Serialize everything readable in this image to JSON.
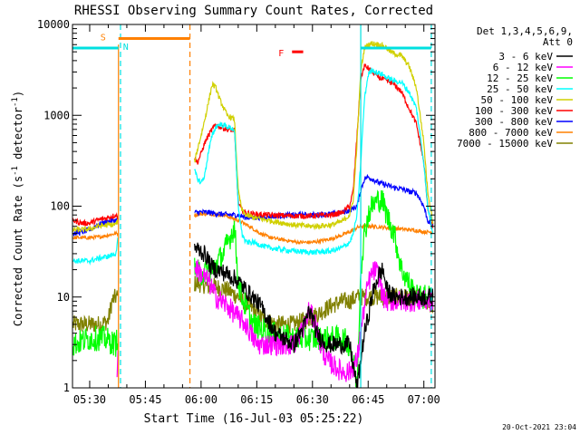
{
  "chart_data": {
    "type": "line",
    "title": "RHESSI Observing Summary Count Rates, Corrected",
    "xlabel": "Start Time (16-Jul-03 05:25:22)",
    "ylabel": "Corrected Count Rate (s⁻¹ detector⁻¹)",
    "ylabel_main": "Corrected Count Rate (s",
    "ylabel_exp1": "-1",
    "ylabel_mid": " detector",
    "ylabel_exp2": "-1",
    "ylabel_end": ")",
    "yscale": "log",
    "xlim": [
      "05:25:22",
      "07:03:00"
    ],
    "ylim": [
      1,
      10000
    ],
    "x_unit": "minutes of day",
    "x_range_minutes": [
      325.37,
      423.0
    ],
    "x_ticks": [
      {
        "label": "05:30",
        "minutes": 330
      },
      {
        "label": "05:45",
        "minutes": 345
      },
      {
        "label": "06:00",
        "minutes": 360
      },
      {
        "label": "06:15",
        "minutes": 375
      },
      {
        "label": "06:30",
        "minutes": 390
      },
      {
        "label": "06:45",
        "minutes": 405
      },
      {
        "label": "07:00",
        "minutes": 420
      }
    ],
    "y_ticks": [
      {
        "label": "1",
        "value": 1
      },
      {
        "label": "10",
        "value": 10
      },
      {
        "label": "100",
        "value": 100
      },
      {
        "label": "1000",
        "value": 1000
      },
      {
        "label": "10000",
        "value": 10000
      }
    ],
    "legend_header": [
      "Det 1,3,4,5,6,9,",
      "Att 0"
    ],
    "legend_position": "top-right, outside plot",
    "timestamp": "20-Oct-2021 23:04",
    "annotations": [
      {
        "text": "S",
        "color": "#ff8000"
      },
      {
        "text": "N",
        "color": "#00e0e0"
      },
      {
        "text": "F",
        "color": "#ff0000"
      }
    ],
    "series": [
      {
        "name": "3 - 6 keV",
        "color": "#000000",
        "width": 1.2,
        "noise": 0.1,
        "x": [
          325.4,
          337.8,
          338.2,
          340,
          357.8,
          358.2,
          360,
          361.5,
          362.5,
          364,
          367,
          370,
          372,
          376,
          380,
          385,
          388,
          389,
          390,
          391,
          394,
          400,
          402,
          403,
          404,
          405,
          406,
          407,
          408,
          409,
          410,
          412,
          414,
          418,
          420,
          422.5
        ],
        "y": [
          null,
          null,
          null,
          null,
          null,
          35,
          32,
          28,
          22,
          20,
          18,
          15,
          12,
          8,
          4,
          3,
          5,
          7,
          6,
          4,
          3,
          3,
          1,
          2,
          4,
          6,
          10,
          14,
          18,
          20,
          12,
          10,
          10,
          10,
          10,
          10
        ]
      },
      {
        "name": "6 - 12 keV",
        "color": "#ff00ff",
        "width": 1.2,
        "noise": 0.12,
        "x": [
          325.4,
          335,
          337.3,
          337.7,
          338.2,
          340,
          357.8,
          358.2,
          360,
          362,
          364,
          367,
          370,
          372,
          375,
          380,
          385,
          388,
          389,
          390,
          391,
          392,
          394,
          398,
          400,
          402,
          403,
          404,
          405,
          406,
          407,
          408,
          409,
          410,
          412,
          414,
          418,
          420,
          422.5
        ],
        "y": [
          null,
          null,
          1.5,
          2.5,
          null,
          null,
          null,
          22,
          18,
          15,
          10,
          8,
          6,
          5,
          3,
          3,
          3,
          5,
          7,
          6,
          5,
          3,
          2,
          1.5,
          1.5,
          2,
          4,
          8,
          14,
          18,
          20,
          16,
          10,
          9,
          9,
          9,
          9,
          9,
          9
        ]
      },
      {
        "name": "12 - 25 keV",
        "color": "#00ff00",
        "width": 1.2,
        "noise": 0.14,
        "x": [
          325.4,
          330,
          334,
          337,
          337.7,
          338.2,
          340,
          357.8,
          358.2,
          360,
          363,
          366,
          369,
          370,
          371,
          374,
          378,
          385,
          392,
          398,
          400,
          401,
          402,
          403,
          404,
          405,
          406,
          407,
          408,
          409,
          410,
          412,
          414,
          418,
          420,
          422.5
        ],
        "y": [
          3,
          3.5,
          3.5,
          3,
          4,
          null,
          null,
          null,
          20,
          18,
          20,
          30,
          60,
          15,
          10,
          5,
          4,
          3.5,
          3.5,
          3.5,
          3,
          2,
          1,
          20,
          50,
          80,
          100,
          110,
          120,
          110,
          80,
          50,
          20,
          10,
          10,
          10
        ]
      },
      {
        "name": "25 - 50 keV",
        "color": "#00ffff",
        "width": 1.2,
        "noise": 0.03,
        "x": [
          325.4,
          330,
          333,
          335,
          337,
          337.7,
          338.2,
          340,
          357.8,
          358.2,
          359,
          360,
          361,
          362,
          363,
          364,
          365,
          367,
          369,
          370,
          371,
          372,
          374,
          378,
          385,
          390,
          395,
          398,
          400,
          401,
          402,
          403,
          404,
          405,
          406,
          407,
          408,
          409,
          410,
          411,
          412,
          414,
          416,
          418,
          420,
          421,
          422.5
        ],
        "y": [
          25,
          25,
          27,
          28,
          30,
          45,
          null,
          null,
          null,
          250,
          200,
          180,
          220,
          400,
          600,
          750,
          800,
          750,
          700,
          100,
          50,
          40,
          40,
          35,
          32,
          31,
          32,
          35,
          40,
          50,
          80,
          300,
          1500,
          2800,
          3200,
          3000,
          2900,
          2800,
          2600,
          2500,
          2400,
          2300,
          1800,
          1200,
          300,
          100,
          50
        ]
      },
      {
        "name": "50 - 100 keV",
        "color": "#d0d000",
        "width": 1.2,
        "noise": 0.03,
        "x": [
          325.4,
          328,
          330,
          332,
          335,
          337,
          337.7,
          338.2,
          340,
          357.8,
          358.2,
          359,
          360,
          361,
          362,
          363,
          364,
          365,
          367,
          369,
          370,
          371,
          372,
          374,
          378,
          385,
          390,
          395,
          398,
          400,
          401,
          402,
          403,
          404,
          405,
          406,
          407,
          408,
          409,
          410,
          411,
          412,
          414,
          416,
          418,
          420,
          421,
          422.5
        ],
        "y": [
          55,
          55,
          56,
          60,
          62,
          63,
          70,
          null,
          null,
          null,
          300,
          420,
          600,
          900,
          1400,
          2200,
          2000,
          1500,
          1000,
          900,
          150,
          90,
          80,
          75,
          70,
          62,
          60,
          62,
          68,
          80,
          120,
          500,
          3000,
          5500,
          6000,
          6200,
          6100,
          6000,
          5800,
          5500,
          5000,
          4800,
          4500,
          3500,
          2000,
          500,
          150,
          65
        ]
      },
      {
        "name": "100 - 300 keV",
        "color": "#ff0000",
        "width": 1.2,
        "noise": 0.03,
        "x": [
          325.4,
          328,
          330,
          332,
          335,
          337,
          337.7,
          338.2,
          340,
          357.8,
          358.2,
          359,
          360,
          361,
          362,
          363,
          364,
          365,
          367,
          369,
          370,
          371,
          372,
          374,
          378,
          385,
          390,
          395,
          398,
          400,
          401,
          402,
          403,
          404,
          405,
          406,
          407,
          408,
          409,
          410,
          411,
          412,
          414,
          416,
          418,
          420,
          421,
          422.5
        ],
        "y": [
          70,
          65,
          65,
          70,
          75,
          80,
          75,
          null,
          null,
          null,
          350,
          300,
          380,
          500,
          600,
          700,
          800,
          750,
          700,
          680,
          110,
          90,
          85,
          82,
          80,
          78,
          78,
          80,
          85,
          100,
          150,
          600,
          2500,
          3500,
          3300,
          3000,
          2800,
          2600,
          2500,
          2400,
          2300,
          2200,
          1800,
          1200,
          800,
          300,
          100,
          55
        ]
      },
      {
        "name": "300 - 800 keV",
        "color": "#0000ff",
        "width": 1.2,
        "noise": 0.03,
        "x": [
          325.4,
          328,
          330,
          332,
          335,
          337,
          337.7,
          338.2,
          340,
          357.8,
          358.2,
          360,
          362,
          365,
          368,
          370,
          372,
          375,
          380,
          385,
          390,
          395,
          398,
          400,
          402,
          403,
          404,
          405,
          406,
          407,
          408,
          409,
          410,
          411,
          412,
          414,
          416,
          418,
          420,
          421,
          422.5
        ],
        "y": [
          50,
          52,
          55,
          62,
          68,
          70,
          72,
          null,
          null,
          null,
          85,
          86,
          85,
          82,
          80,
          80,
          75,
          75,
          78,
          80,
          80,
          82,
          85,
          90,
          100,
          150,
          200,
          210,
          200,
          190,
          180,
          175,
          170,
          165,
          160,
          155,
          145,
          140,
          100,
          70,
          60
        ]
      },
      {
        "name": "800 - 7000 keV",
        "color": "#ff8000",
        "width": 1.2,
        "noise": 0.02,
        "x": [
          325.4,
          328,
          330,
          333,
          335,
          337,
          337.7,
          338.2,
          340,
          357.8,
          358.2,
          360,
          363,
          366,
          368,
          370,
          373,
          376,
          378,
          380,
          383,
          386,
          388,
          390,
          393,
          396,
          398,
          400,
          401,
          402,
          403,
          404,
          405,
          406,
          408,
          410,
          412,
          414,
          416,
          418,
          420,
          422.5
        ],
        "y": [
          45,
          45,
          45,
          46,
          48,
          50,
          50,
          null,
          null,
          null,
          80,
          82,
          82,
          80,
          75,
          70,
          60,
          50,
          46,
          44,
          42,
          40,
          40,
          40,
          42,
          45,
          48,
          52,
          55,
          58,
          60,
          60,
          60,
          60,
          59,
          58,
          57,
          56,
          55,
          54,
          52,
          52
        ]
      },
      {
        "name": "7000 - 15000 keV",
        "color": "#808000",
        "width": 1.2,
        "noise": 0.1,
        "x": [
          325.4,
          330,
          333,
          335,
          336,
          337,
          337.7,
          338.2,
          340,
          357.8,
          358.2,
          360,
          362,
          364,
          367,
          370,
          373,
          376,
          380,
          385,
          390,
          395,
          398,
          400,
          402,
          404,
          406,
          408,
          410,
          412,
          414,
          416,
          418,
          420,
          422.5
        ],
        "y": [
          5,
          5,
          5,
          5.5,
          9,
          10,
          10,
          null,
          null,
          null,
          14,
          14,
          13,
          13,
          12,
          10,
          8,
          6,
          5,
          5,
          6,
          8,
          9,
          9,
          10,
          10,
          10,
          10,
          10,
          10,
          10,
          10,
          10,
          9,
          8
        ]
      }
    ],
    "marker_lines": [
      {
        "color": "#ff8000",
        "x": [
          337.75
        ],
        "y": [
          1,
          6000
        ]
      },
      {
        "color": "#ff8000",
        "x": [
          357.0
        ],
        "y": [
          1,
          10000
        ],
        "dash": true
      },
      {
        "color": "#00e0e0",
        "x": [
          338.3
        ],
        "y": [
          1,
          10000
        ],
        "dash": true
      },
      {
        "color": "#00e0e0",
        "x": [
          403.0
        ],
        "y": [
          1,
          10000
        ]
      },
      {
        "color": "#00e0e0",
        "x": [
          422.0
        ],
        "y": [
          1,
          10000
        ],
        "dash": true
      }
    ],
    "flag_bars": [
      {
        "label": "S",
        "color": "#ff8000",
        "from": 337.75,
        "to": 357.0,
        "y": 7000
      },
      {
        "label": "N",
        "color": "#00e0e0",
        "from": 325.4,
        "to": 337.75,
        "y": 5500
      },
      {
        "label": "N",
        "color": "#00e0e0",
        "from": 403.0,
        "to": 422.0,
        "y": 5500
      },
      {
        "label": "F",
        "color": "#ff0000",
        "from": 384.5,
        "to": 387.5,
        "y": 5000
      }
    ]
  }
}
